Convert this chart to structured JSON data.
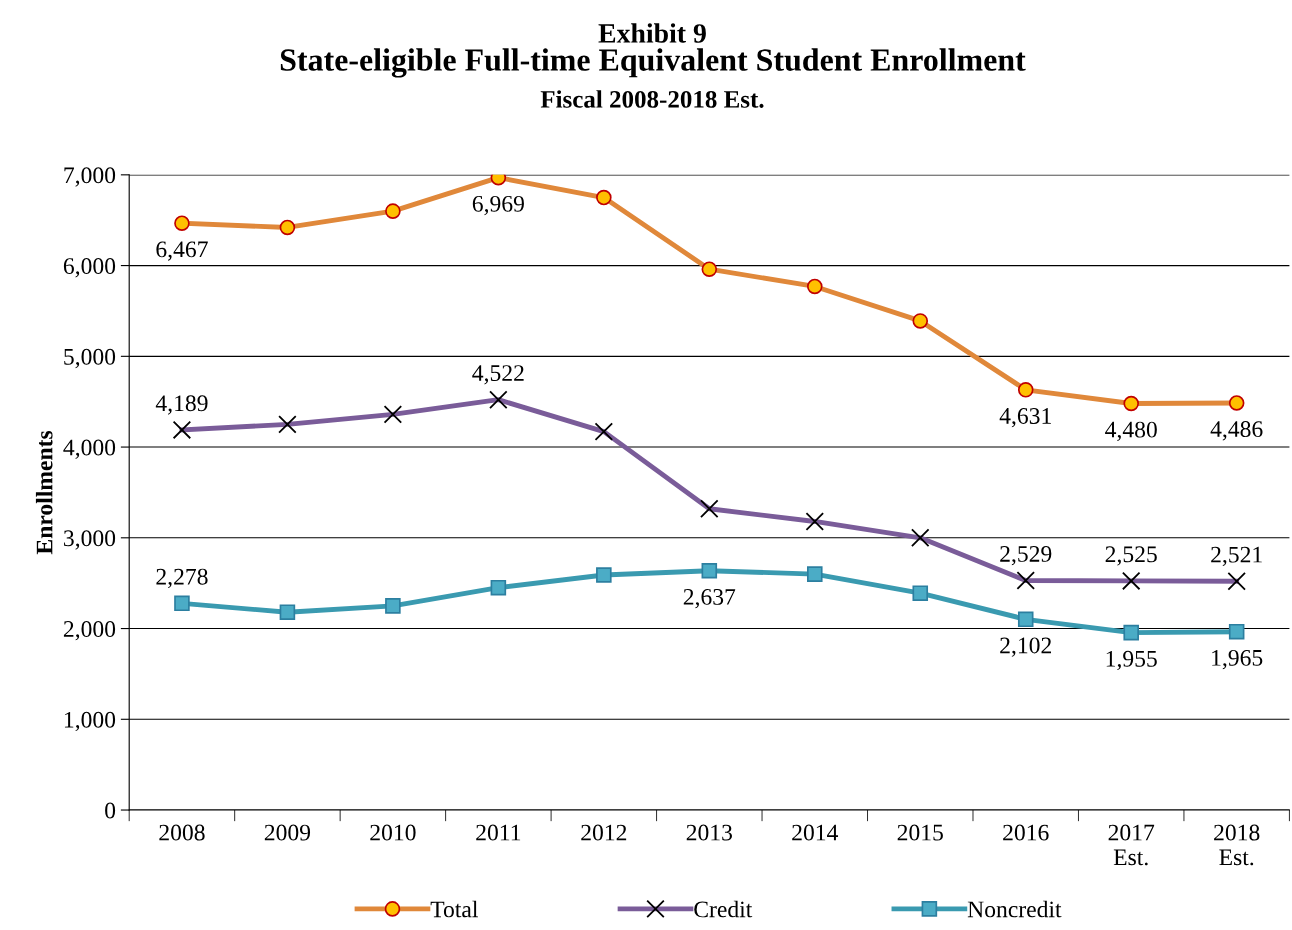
{
  "chart_data": {
    "type": "line",
    "title": "Exhibit 9",
    "subtitle": "State-eligible Full-time Equivalent Student Enrollment\nFiscal 2008-2018 Est.",
    "ylabel": "Enrollments",
    "categories": [
      "2008",
      "2009",
      "2010",
      "2011",
      "2012",
      "2013",
      "2014",
      "2015",
      "2016",
      "2017\nEst.",
      "2018\nEst."
    ],
    "series": [
      {
        "name": "Total",
        "color": "#e0883a",
        "marker": "circle",
        "values": [
          6467,
          6420,
          6600,
          6969,
          6750,
          5960,
          5770,
          5390,
          4631,
          4480,
          4486
        ],
        "value_labels": [
          "6,467",
          null,
          null,
          "6,969",
          null,
          null,
          null,
          null,
          "4,631",
          "4,480",
          "4,486"
        ]
      },
      {
        "name": "Credit",
        "color": "#7a5c99",
        "marker": "cross",
        "values": [
          4189,
          4250,
          4360,
          4522,
          4170,
          3320,
          3180,
          3000,
          2529,
          2525,
          2521
        ],
        "value_labels": [
          "4,189",
          null,
          null,
          "4,522",
          null,
          null,
          null,
          null,
          "2,529",
          "2,525",
          "2,521"
        ]
      },
      {
        "name": "Noncredit",
        "color": "#3a9ab0",
        "marker": "square",
        "values": [
          2278,
          2180,
          2250,
          2450,
          2590,
          2637,
          2600,
          2390,
          2102,
          1955,
          1965
        ],
        "value_labels": [
          "2,278",
          null,
          null,
          null,
          null,
          "2,637",
          null,
          null,
          "2,102",
          "1,955",
          "1,965"
        ]
      }
    ],
    "ylim": [
      0,
      7000
    ],
    "yticks": [
      {
        "value": 0,
        "label": "0"
      },
      {
        "value": 1000,
        "label": "1,000"
      },
      {
        "value": 2000,
        "label": "2,000"
      },
      {
        "value": 3000,
        "label": "3,000"
      },
      {
        "value": 4000,
        "label": "4,000"
      },
      {
        "value": 5000,
        "label": "5,000"
      },
      {
        "value": 6000,
        "label": "6,000"
      },
      {
        "value": 7000,
        "label": "7,000"
      }
    ],
    "grid": "y",
    "legend": "bottom"
  }
}
